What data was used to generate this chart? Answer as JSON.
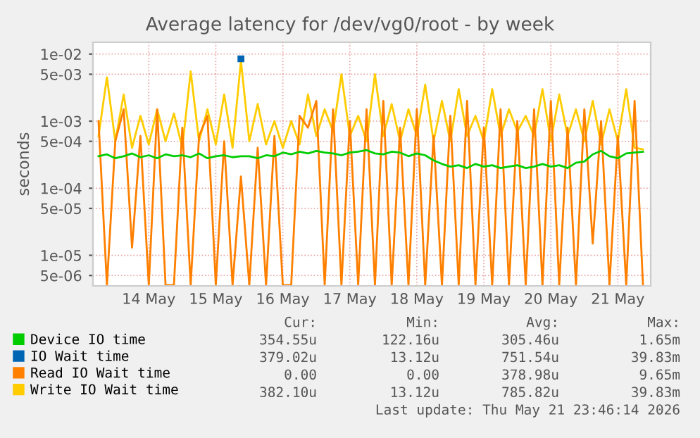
{
  "chart_data": {
    "type": "line",
    "title": "Average latency for /dev/vg0/root - by week",
    "ylabel": "seconds",
    "x": [
      "2026-05-13T18:00",
      "2026-05-13T21:00",
      "2026-05-14T00:00",
      "2026-05-14T03:00",
      "2026-05-14T06:00",
      "2026-05-14T09:00",
      "2026-05-14T12:00",
      "2026-05-14T15:00",
      "2026-05-14T18:00",
      "2026-05-14T21:00",
      "2026-05-15T00:00",
      "2026-05-15T03:00",
      "2026-05-15T06:00",
      "2026-05-15T09:00",
      "2026-05-15T12:00",
      "2026-05-15T15:00",
      "2026-05-15T18:00",
      "2026-05-15T21:00",
      "2026-05-16T00:00",
      "2026-05-16T03:00",
      "2026-05-16T06:00",
      "2026-05-16T09:00",
      "2026-05-16T12:00",
      "2026-05-16T15:00",
      "2026-05-16T18:00",
      "2026-05-16T21:00",
      "2026-05-17T00:00",
      "2026-05-17T03:00",
      "2026-05-17T06:00",
      "2026-05-17T09:00",
      "2026-05-17T12:00",
      "2026-05-17T15:00",
      "2026-05-17T18:00",
      "2026-05-17T21:00",
      "2026-05-18T00:00",
      "2026-05-18T03:00",
      "2026-05-18T06:00",
      "2026-05-18T09:00",
      "2026-05-18T12:00",
      "2026-05-18T15:00",
      "2026-05-18T18:00",
      "2026-05-18T21:00",
      "2026-05-19T00:00",
      "2026-05-19T03:00",
      "2026-05-19T06:00",
      "2026-05-19T09:00",
      "2026-05-19T12:00",
      "2026-05-19T15:00",
      "2026-05-19T18:00",
      "2026-05-19T21:00",
      "2026-05-20T00:00",
      "2026-05-20T03:00",
      "2026-05-20T06:00",
      "2026-05-20T09:00",
      "2026-05-20T12:00",
      "2026-05-20T15:00",
      "2026-05-20T18:00",
      "2026-05-20T21:00",
      "2026-05-21T00:00",
      "2026-05-21T03:00",
      "2026-05-21T06:00",
      "2026-05-21T09:00",
      "2026-05-21T12:00",
      "2026-05-21T15:00",
      "2026-05-21T18:00",
      "2026-05-21T21:00"
    ],
    "series": [
      {
        "name": "Device IO time",
        "color": "#00cc00",
        "values": [
          0.0003,
          0.00032,
          0.00028,
          0.0003,
          0.00033,
          0.00029,
          0.00031,
          0.00028,
          0.00032,
          0.0003,
          0.00031,
          0.00029,
          0.00033,
          0.00028,
          0.0003,
          0.00031,
          0.00029,
          0.0003,
          0.0003,
          0.00028,
          0.00031,
          0.0003,
          0.00034,
          0.00032,
          0.00035,
          0.00033,
          0.00036,
          0.00034,
          0.00033,
          0.00031,
          0.00034,
          0.00035,
          0.00037,
          0.00033,
          0.00032,
          0.00035,
          0.00034,
          0.0003,
          0.00033,
          0.00031,
          0.00026,
          0.00023,
          0.00021,
          0.00022,
          0.0002,
          0.00023,
          0.00021,
          0.00022,
          0.0002,
          0.00021,
          0.00022,
          0.0002,
          0.00021,
          0.00023,
          0.00021,
          0.00022,
          0.0002,
          0.00024,
          0.00025,
          0.00032,
          0.00036,
          0.0003,
          0.00028,
          0.00033,
          0.00034,
          0.00035
        ]
      },
      {
        "name": "IO Wait time",
        "color": "#0066b3",
        "marker": "square",
        "values": [
          null,
          null,
          null,
          null,
          null,
          null,
          null,
          null,
          null,
          null,
          null,
          null,
          null,
          null,
          null,
          null,
          null,
          0.0085,
          null,
          null,
          null,
          null,
          null,
          null,
          null,
          null,
          null,
          null,
          null,
          null,
          null,
          null,
          null,
          null,
          null,
          null,
          null,
          null,
          null,
          null,
          null,
          null,
          null,
          null,
          null,
          null,
          null,
          null,
          null,
          null,
          null,
          null,
          null,
          null,
          null,
          null,
          null,
          null,
          null,
          null,
          null,
          null,
          null,
          null,
          null,
          null
        ]
      },
      {
        "name": "Read IO Wait time",
        "color": "#ff8000",
        "values": [
          0.001,
          3.6e-06,
          0.0005,
          0.0015,
          1.3e-05,
          0.0006,
          3.6e-06,
          0.0015,
          3.6e-06,
          3.6e-06,
          0.0008,
          3.6e-06,
          0.0006,
          0.0012,
          3.6e-06,
          0.0005,
          3.6e-06,
          0.00015,
          3.6e-06,
          0.0004,
          3.6e-06,
          0.0006,
          3.6e-06,
          3.6e-06,
          0.0012,
          0.0008,
          0.002,
          3.6e-06,
          0.0015,
          3.6e-06,
          0.001,
          3.6e-06,
          0.0015,
          3.6e-06,
          0.002,
          3.6e-06,
          0.0008,
          3.6e-06,
          0.0015,
          3.6e-06,
          0.0006,
          3.6e-06,
          0.0012,
          3.6e-06,
          0.002,
          3.6e-06,
          0.0008,
          3.6e-06,
          0.0015,
          3.6e-06,
          0.001,
          3.6e-06,
          0.0015,
          3.6e-06,
          0.002,
          3.6e-06,
          0.0008,
          3.6e-06,
          0.0015,
          1.5e-05,
          0.001,
          3.6e-06,
          0.0006,
          3.6e-06,
          0.002,
          3.6e-06
        ]
      },
      {
        "name": "Write IO Wait time",
        "color": "#ffcc00",
        "values": [
          0.0006,
          0.0045,
          0.0005,
          0.0025,
          0.0004,
          0.0012,
          0.00045,
          0.0015,
          0.0005,
          0.0013,
          0.0004,
          0.0055,
          0.0005,
          0.0015,
          0.00045,
          0.0025,
          0.0004,
          0.008,
          0.0005,
          0.0018,
          0.00045,
          0.001,
          0.0004,
          0.001,
          0.00045,
          0.0025,
          0.0006,
          0.0015,
          0.0007,
          0.005,
          0.0006,
          0.0012,
          0.0005,
          0.005,
          0.0006,
          0.0018,
          0.0005,
          0.0015,
          0.0006,
          0.0035,
          0.0005,
          0.002,
          0.0005,
          0.003,
          0.0006,
          0.0012,
          0.0005,
          0.003,
          0.0006,
          0.0015,
          0.0007,
          0.0012,
          0.0006,
          0.003,
          0.0005,
          0.0025,
          0.0006,
          0.0015,
          0.0005,
          0.002,
          0.00045,
          0.0015,
          0.0005,
          0.003,
          0.0004,
          0.00038
        ]
      }
    ],
    "log": "y",
    "ylim": [
      3.5e-06,
      0.015
    ],
    "yticks": [
      {
        "value": 0.01,
        "label": "1e-02"
      },
      {
        "value": 0.005,
        "label": "5e-03"
      },
      {
        "value": 0.001,
        "label": "1e-03"
      },
      {
        "value": 0.0005,
        "label": "5e-04"
      },
      {
        "value": 0.0001,
        "label": "1e-04"
      },
      {
        "value": 5e-05,
        "label": "5e-05"
      },
      {
        "value": 1e-05,
        "label": "1e-05"
      },
      {
        "value": 5e-06,
        "label": "5e-06"
      }
    ],
    "xlim": [
      "2026-05-13T16:00",
      "2026-05-21T23:46"
    ],
    "xticks": [
      {
        "value": "2026-05-14T12:00",
        "label": "14 May"
      },
      {
        "value": "2026-05-15T12:00",
        "label": "15 May"
      },
      {
        "value": "2026-05-16T12:00",
        "label": "16 May"
      },
      {
        "value": "2026-05-17T12:00",
        "label": "17 May"
      },
      {
        "value": "2026-05-18T12:00",
        "label": "18 May"
      },
      {
        "value": "2026-05-19T12:00",
        "label": "19 May"
      },
      {
        "value": "2026-05-20T12:00",
        "label": "20 May"
      },
      {
        "value": "2026-05-21T12:00",
        "label": "21 May"
      }
    ],
    "grid": true,
    "legend": "bottom",
    "annotations": [
      "Cur:",
      "Min:",
      "Avg:",
      "Max:",
      "354.55u",
      "122.16u",
      "305.46u",
      "1.65m",
      "379.02u",
      "13.12u",
      "751.54u",
      "39.83m",
      "0.00",
      "0.00",
      "378.98u",
      "9.65m",
      "382.10u",
      "13.12u",
      "785.82u",
      "39.83m",
      "Last update: Thu May 21 23:46:14 2026"
    ]
  }
}
